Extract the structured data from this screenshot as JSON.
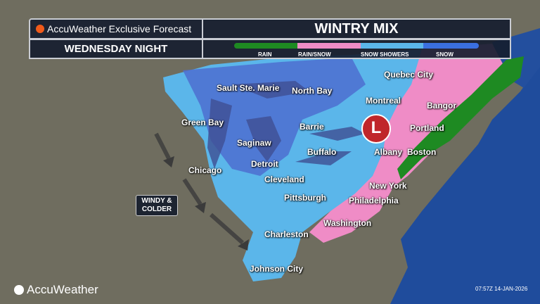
{
  "header": {
    "brand_title": "AccuWeather Exclusive Forecast",
    "map_title": "WINTRY MIX",
    "period": "WEDNESDAY NIGHT"
  },
  "legend": [
    {
      "label": "RAIN",
      "color": "#1e8a22"
    },
    {
      "label": "RAIN/SNOW",
      "color": "#ef8cc6"
    },
    {
      "label": "SNOW SHOWERS",
      "color": "#5bb6ea"
    },
    {
      "label": "SNOW",
      "color": "#3a6fe0"
    }
  ],
  "cities": [
    "Quebec City",
    "Sault Ste. Marie",
    "North Bay",
    "Montreal",
    "Bangor",
    "Green Bay",
    "Barrie",
    "Portland",
    "Saginaw",
    "Buffalo",
    "Albany",
    "Boston",
    "Detroit",
    "Chicago",
    "Cleveland",
    "New York",
    "Pittsburgh",
    "Philadelphia",
    "Washington",
    "Charleston",
    "Johnson City"
  ],
  "low_pressure": {
    "label": "L",
    "color": "#c0262a"
  },
  "annotation": "WINDY &\nCOLDER",
  "footer": {
    "logo": "AccuWeather",
    "timestamp": "07:57Z 14-JAN-2026"
  }
}
